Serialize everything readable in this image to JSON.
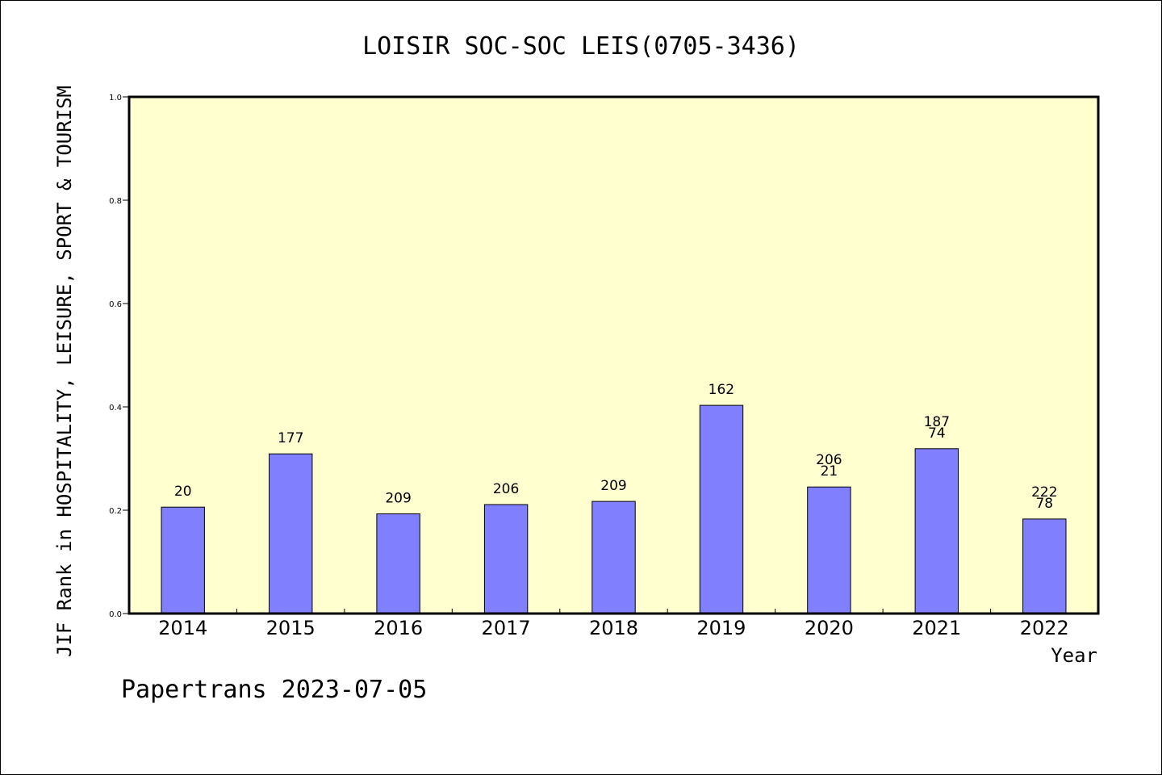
{
  "chart_data": {
    "type": "bar",
    "title": "LOISIR SOC-SOC LEIS(0705-3436)",
    "ylabel": "JIF Rank in HOSPITALITY, LEISURE, SPORT & TOURISM",
    "xlabel": "Year",
    "ylim": [
      0,
      1.0
    ],
    "yticks": [
      "0.0",
      "0.2",
      "0.4",
      "0.6",
      "0.8",
      "1.0"
    ],
    "grid": false,
    "categories": [
      "2014",
      "2015",
      "2016",
      "2017",
      "2018",
      "2019",
      "2020",
      "2021",
      "2022"
    ],
    "values": [
      0.206,
      0.309,
      0.193,
      0.211,
      0.217,
      0.403,
      0.245,
      0.319,
      0.183
    ],
    "bar_labels": [
      [
        "20"
      ],
      [
        "177"
      ],
      [
        "209"
      ],
      [
        "206"
      ],
      [
        "209"
      ],
      [
        "162"
      ],
      [
        "206",
        "21"
      ],
      [
        "187",
        "74"
      ],
      [
        "222",
        "78"
      ]
    ],
    "bar_color": "#8080ff",
    "plot_background": "#ffffd0",
    "footer": "Papertrans 2023-07-05"
  }
}
